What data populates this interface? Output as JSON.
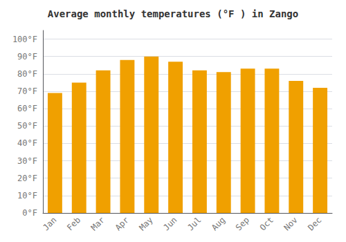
{
  "chart_data": {
    "type": "bar",
    "title": "Average monthly temperatures (°F ) in Zango",
    "categories": [
      "Jan",
      "Feb",
      "Mar",
      "Apr",
      "May",
      "Jun",
      "Jul",
      "Aug",
      "Sep",
      "Oct",
      "Nov",
      "Dec"
    ],
    "values": [
      69,
      75,
      82,
      88,
      90,
      87,
      82,
      81,
      83,
      83,
      76,
      72
    ],
    "color": "#F0A000",
    "ylim": [
      0,
      105
    ],
    "yticks": [
      {
        "value": 0,
        "label": "0°F"
      },
      {
        "value": 10,
        "label": "10°F"
      },
      {
        "value": 20,
        "label": "20°F"
      },
      {
        "value": 30,
        "label": "30°F"
      },
      {
        "value": 40,
        "label": "40°F"
      },
      {
        "value": 50,
        "label": "50°F"
      },
      {
        "value": 60,
        "label": "60°F"
      },
      {
        "value": 70,
        "label": "70°F"
      },
      {
        "value": 80,
        "label": "80°F"
      },
      {
        "value": 90,
        "label": "90°F"
      },
      {
        "value": 100,
        "label": "100°F"
      }
    ],
    "grid": true
  }
}
